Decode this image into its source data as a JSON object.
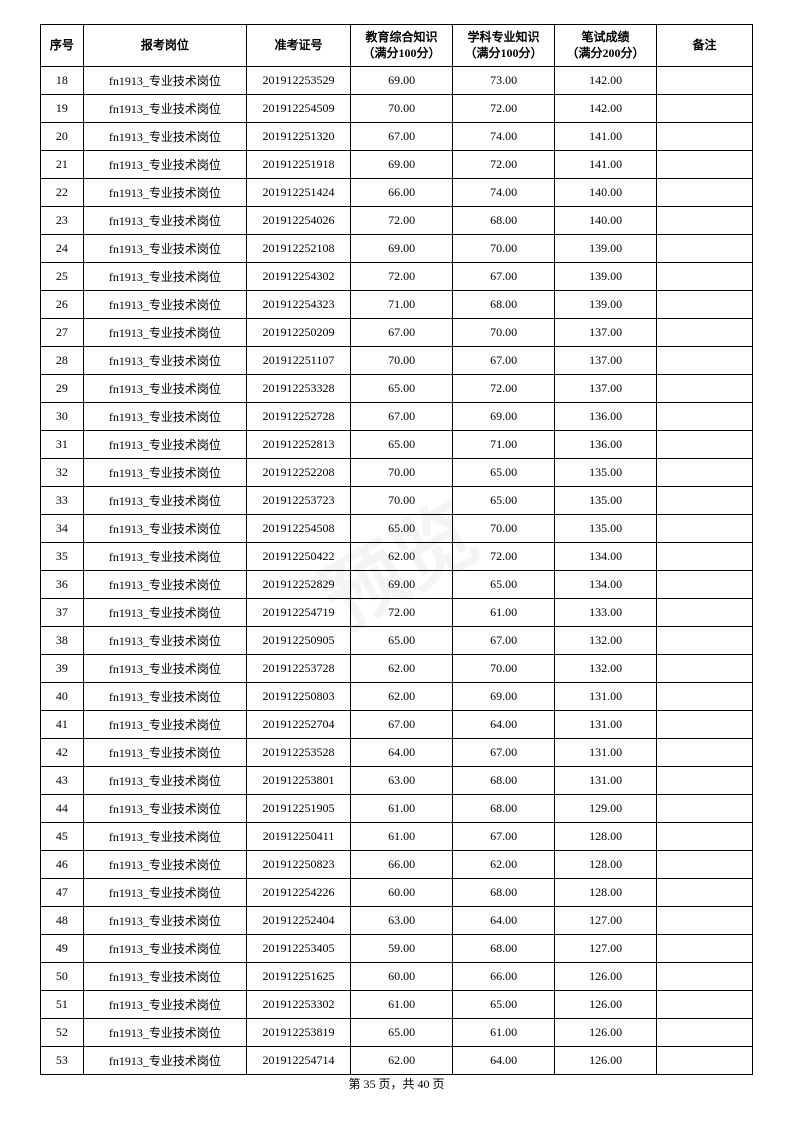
{
  "columns": [
    "序号",
    "报考岗位",
    "准考证号",
    "教育综合知识\n（满分100分）",
    "学科专业知识\n（满分100分）",
    "笔试成绩\n（满分200分）",
    "备注"
  ],
  "rows": [
    [
      "18",
      "fn1913_专业技术岗位",
      "201912253529",
      "69.00",
      "73.00",
      "142.00",
      ""
    ],
    [
      "19",
      "fn1913_专业技术岗位",
      "201912254509",
      "70.00",
      "72.00",
      "142.00",
      ""
    ],
    [
      "20",
      "fn1913_专业技术岗位",
      "201912251320",
      "67.00",
      "74.00",
      "141.00",
      ""
    ],
    [
      "21",
      "fn1913_专业技术岗位",
      "201912251918",
      "69.00",
      "72.00",
      "141.00",
      ""
    ],
    [
      "22",
      "fn1913_专业技术岗位",
      "201912251424",
      "66.00",
      "74.00",
      "140.00",
      ""
    ],
    [
      "23",
      "fn1913_专业技术岗位",
      "201912254026",
      "72.00",
      "68.00",
      "140.00",
      ""
    ],
    [
      "24",
      "fn1913_专业技术岗位",
      "201912252108",
      "69.00",
      "70.00",
      "139.00",
      ""
    ],
    [
      "25",
      "fn1913_专业技术岗位",
      "201912254302",
      "72.00",
      "67.00",
      "139.00",
      ""
    ],
    [
      "26",
      "fn1913_专业技术岗位",
      "201912254323",
      "71.00",
      "68.00",
      "139.00",
      ""
    ],
    [
      "27",
      "fn1913_专业技术岗位",
      "201912250209",
      "67.00",
      "70.00",
      "137.00",
      ""
    ],
    [
      "28",
      "fn1913_专业技术岗位",
      "201912251107",
      "70.00",
      "67.00",
      "137.00",
      ""
    ],
    [
      "29",
      "fn1913_专业技术岗位",
      "201912253328",
      "65.00",
      "72.00",
      "137.00",
      ""
    ],
    [
      "30",
      "fn1913_专业技术岗位",
      "201912252728",
      "67.00",
      "69.00",
      "136.00",
      ""
    ],
    [
      "31",
      "fn1913_专业技术岗位",
      "201912252813",
      "65.00",
      "71.00",
      "136.00",
      ""
    ],
    [
      "32",
      "fn1913_专业技术岗位",
      "201912252208",
      "70.00",
      "65.00",
      "135.00",
      ""
    ],
    [
      "33",
      "fn1913_专业技术岗位",
      "201912253723",
      "70.00",
      "65.00",
      "135.00",
      ""
    ],
    [
      "34",
      "fn1913_专业技术岗位",
      "201912254508",
      "65.00",
      "70.00",
      "135.00",
      ""
    ],
    [
      "35",
      "fn1913_专业技术岗位",
      "201912250422",
      "62.00",
      "72.00",
      "134.00",
      ""
    ],
    [
      "36",
      "fn1913_专业技术岗位",
      "201912252829",
      "69.00",
      "65.00",
      "134.00",
      ""
    ],
    [
      "37",
      "fn1913_专业技术岗位",
      "201912254719",
      "72.00",
      "61.00",
      "133.00",
      ""
    ],
    [
      "38",
      "fn1913_专业技术岗位",
      "201912250905",
      "65.00",
      "67.00",
      "132.00",
      ""
    ],
    [
      "39",
      "fn1913_专业技术岗位",
      "201912253728",
      "62.00",
      "70.00",
      "132.00",
      ""
    ],
    [
      "40",
      "fn1913_专业技术岗位",
      "201912250803",
      "62.00",
      "69.00",
      "131.00",
      ""
    ],
    [
      "41",
      "fn1913_专业技术岗位",
      "201912252704",
      "67.00",
      "64.00",
      "131.00",
      ""
    ],
    [
      "42",
      "fn1913_专业技术岗位",
      "201912253528",
      "64.00",
      "67.00",
      "131.00",
      ""
    ],
    [
      "43",
      "fn1913_专业技术岗位",
      "201912253801",
      "63.00",
      "68.00",
      "131.00",
      ""
    ],
    [
      "44",
      "fn1913_专业技术岗位",
      "201912251905",
      "61.00",
      "68.00",
      "129.00",
      ""
    ],
    [
      "45",
      "fn1913_专业技术岗位",
      "201912250411",
      "61.00",
      "67.00",
      "128.00",
      ""
    ],
    [
      "46",
      "fn1913_专业技术岗位",
      "201912250823",
      "66.00",
      "62.00",
      "128.00",
      ""
    ],
    [
      "47",
      "fn1913_专业技术岗位",
      "201912254226",
      "60.00",
      "68.00",
      "128.00",
      ""
    ],
    [
      "48",
      "fn1913_专业技术岗位",
      "201912252404",
      "63.00",
      "64.00",
      "127.00",
      ""
    ],
    [
      "49",
      "fn1913_专业技术岗位",
      "201912253405",
      "59.00",
      "68.00",
      "127.00",
      ""
    ],
    [
      "50",
      "fn1913_专业技术岗位",
      "201912251625",
      "60.00",
      "66.00",
      "126.00",
      ""
    ],
    [
      "51",
      "fn1913_专业技术岗位",
      "201912253302",
      "61.00",
      "65.00",
      "126.00",
      ""
    ],
    [
      "52",
      "fn1913_专业技术岗位",
      "201912253819",
      "65.00",
      "61.00",
      "126.00",
      ""
    ],
    [
      "53",
      "fn1913_专业技术岗位",
      "201912254714",
      "62.00",
      "64.00",
      "126.00",
      ""
    ]
  ],
  "footer": "第 35 页，共 40 页",
  "watermark": "预览"
}
